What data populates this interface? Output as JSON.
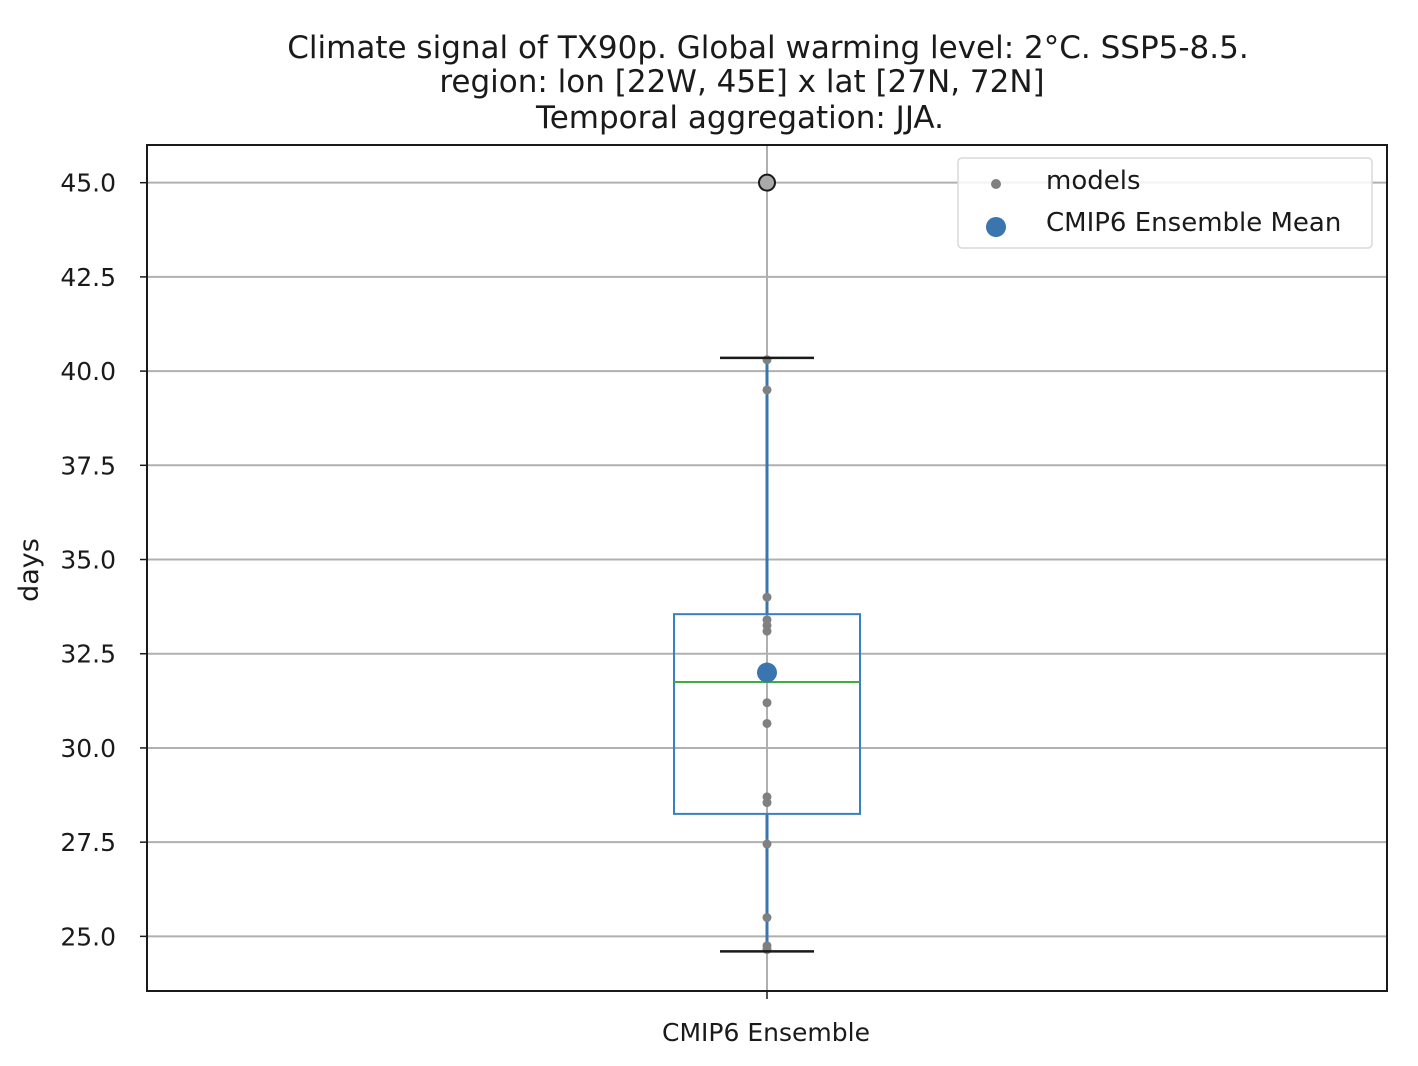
{
  "chart_data": {
    "type": "box",
    "title_lines": [
      "Climate signal of TX90p. Global warming level: 2°C. SSP5-8.5.",
      "region: lon [22W, 45E] x lat [27N, 72N]",
      "Temporal aggregation: JJA."
    ],
    "xlabel": "",
    "ylabel": "days",
    "categories": [
      "CMIP6 Ensemble"
    ],
    "ylim": [
      23.55,
      46.0
    ],
    "yticks": [
      25.0,
      27.5,
      30.0,
      32.5,
      35.0,
      37.5,
      40.0,
      42.5,
      45.0
    ],
    "ytick_labels": [
      "25.0",
      "27.5",
      "30.0",
      "32.5",
      "35.0",
      "37.5",
      "40.0",
      "42.5",
      "45.0"
    ],
    "grid": true,
    "box": {
      "category": "CMIP6 Ensemble",
      "q1": 28.25,
      "median": 31.75,
      "q3": 33.55,
      "whisker_low": 24.6,
      "whisker_high": 40.35,
      "outliers": [
        45.0
      ]
    },
    "models": [
      40.3,
      39.5,
      34.0,
      33.4,
      33.25,
      33.1,
      32.15,
      31.2,
      30.65,
      28.7,
      28.55,
      27.45,
      25.5,
      24.75,
      24.65
    ],
    "ensemble_mean": 32.0,
    "legend": {
      "placement": "top-right",
      "entries": [
        {
          "label": "models",
          "marker": "small-dot",
          "color": "#808080"
        },
        {
          "label": "CMIP6 Ensemble Mean",
          "marker": "large-dot",
          "color": "#3a75b0"
        }
      ]
    },
    "colors": {
      "box": "#3a7fc1",
      "median": "#3fae3f",
      "whisker_line": "#3a75b0",
      "cap": "#1a1a1a",
      "models": "#808080",
      "mean": "#3a75b0",
      "outlier_fill": "#aaaaaa",
      "grid": "#b0b0b0"
    }
  }
}
